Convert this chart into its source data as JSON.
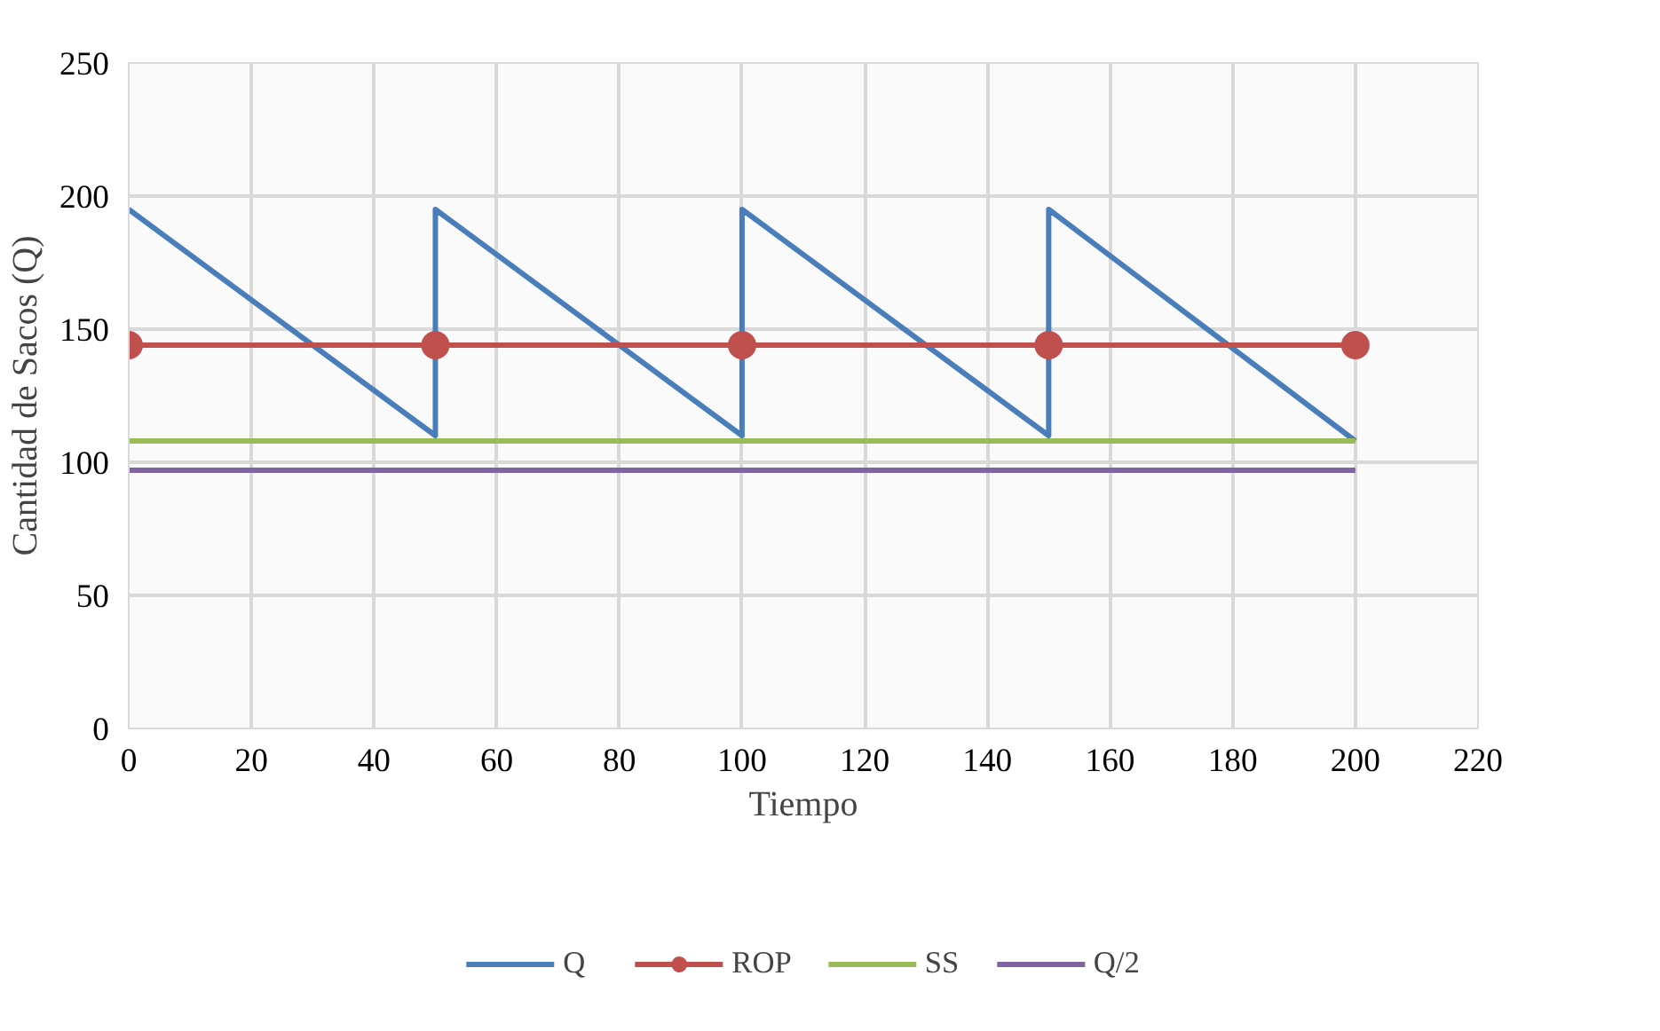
{
  "chart_data": {
    "type": "line",
    "xlabel": "Tiempo",
    "ylabel": "Cantidad de Sacos (Q)",
    "xlim": [
      0,
      220
    ],
    "xticks": [
      0,
      20,
      40,
      60,
      80,
      100,
      120,
      140,
      160,
      180,
      200,
      220
    ],
    "ylim": [
      0,
      250
    ],
    "yticks": [
      0,
      50,
      100,
      150,
      200,
      250
    ],
    "grid": true,
    "legend": "bottom",
    "series": [
      {
        "name": "Q",
        "color": "#4a7ebb",
        "x": [
          0,
          50,
          50,
          100,
          100,
          150,
          150,
          200
        ],
        "values": [
          195,
          110,
          195,
          110,
          195,
          110,
          195,
          108
        ],
        "marker": "none"
      },
      {
        "name": "ROP",
        "color": "#c0504d",
        "x": [
          0,
          50,
          100,
          150,
          200
        ],
        "values": [
          144,
          144,
          144,
          144,
          144
        ],
        "marker": "circle"
      },
      {
        "name": "SS",
        "color": "#9bbb59",
        "x": [
          0,
          200
        ],
        "values": [
          108,
          108
        ],
        "marker": "none"
      },
      {
        "name": "Q/2",
        "color": "#8064a2",
        "x": [
          0,
          200
        ],
        "values": [
          97,
          97
        ],
        "marker": "none"
      }
    ]
  }
}
